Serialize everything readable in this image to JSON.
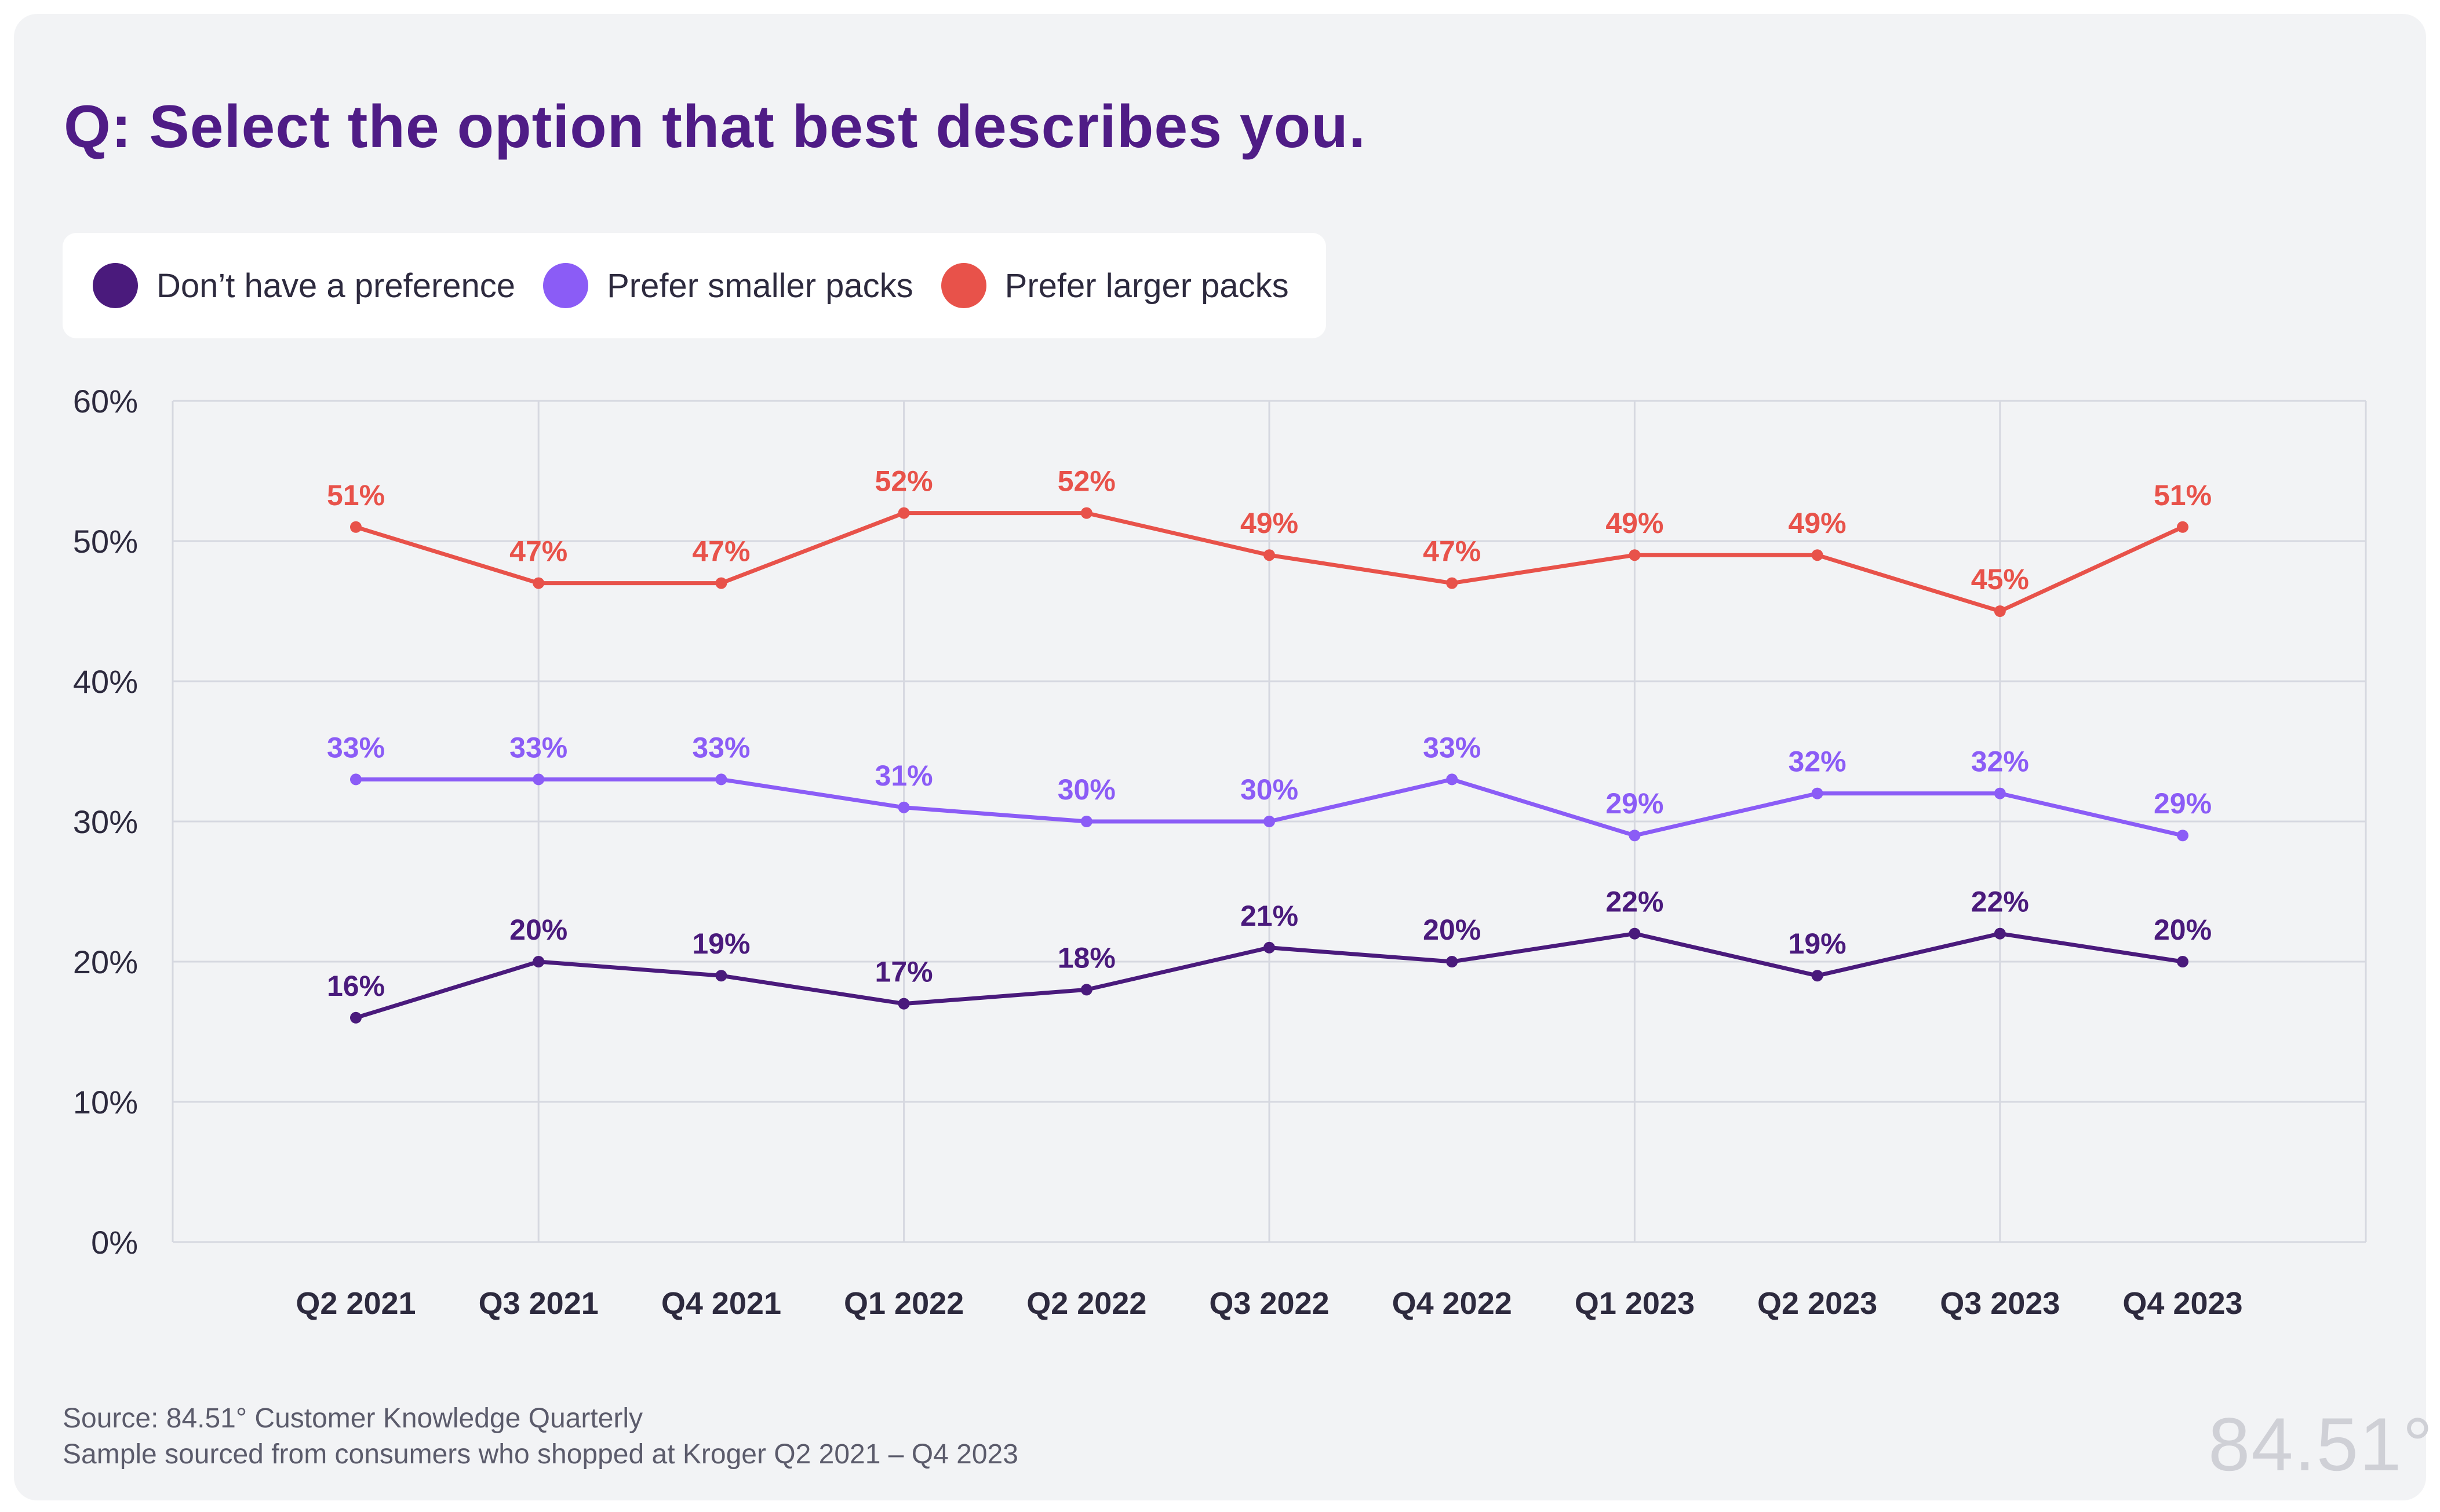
{
  "title": "Q: Select the option that best describes you.",
  "legend": [
    {
      "label": "Don’t have a preference",
      "color": "#4a1a7c"
    },
    {
      "label": "Prefer smaller packs",
      "color": "#8b5cf6"
    },
    {
      "label": "Prefer larger packs",
      "color": "#e8524a"
    }
  ],
  "chart_data": {
    "type": "line",
    "categories": [
      "Q2 2021",
      "Q3 2021",
      "Q4 2021",
      "Q1 2022",
      "Q2 2022",
      "Q3 2022",
      "Q4 2022",
      "Q1 2023",
      "Q2 2023",
      "Q3 2023",
      "Q4 2023"
    ],
    "yticks": [
      "0%",
      "10%",
      "20%",
      "30%",
      "40%",
      "50%",
      "60%"
    ],
    "ylim": [
      0,
      60
    ],
    "grid": true,
    "legend_position": "top-left",
    "series": [
      {
        "name": "Prefer larger packs",
        "color": "#e8524a",
        "values": [
          51,
          47,
          47,
          52,
          52,
          49,
          47,
          49,
          49,
          45,
          51
        ],
        "labels": [
          "51%",
          "47%",
          "47%",
          "52%",
          "52%",
          "49%",
          "47%",
          "49%",
          "49%",
          "45%",
          "51%"
        ]
      },
      {
        "name": "Prefer smaller packs",
        "color": "#8b5cf6",
        "values": [
          33,
          33,
          33,
          31,
          30,
          30,
          33,
          29,
          32,
          32,
          29
        ],
        "labels": [
          "33%",
          "33%",
          "33%",
          "31%",
          "30%",
          "30%",
          "33%",
          "29%",
          "32%",
          "32%",
          "29%"
        ]
      },
      {
        "name": "Don’t have a preference",
        "color": "#4a1a7c",
        "values": [
          16,
          20,
          19,
          17,
          18,
          21,
          20,
          22,
          19,
          22,
          20
        ],
        "labels": [
          "16%",
          "20%",
          "19%",
          "17%",
          "18%",
          "21%",
          "20%",
          "22%",
          "19%",
          "22%",
          "20%"
        ]
      }
    ]
  },
  "footer": {
    "source": "Source: 84.51° Customer Knowledge Quarterly",
    "sample": "Sample sourced from consumers who shopped at Kroger Q2 2021 – Q4 2023",
    "logo": "84.51°"
  }
}
